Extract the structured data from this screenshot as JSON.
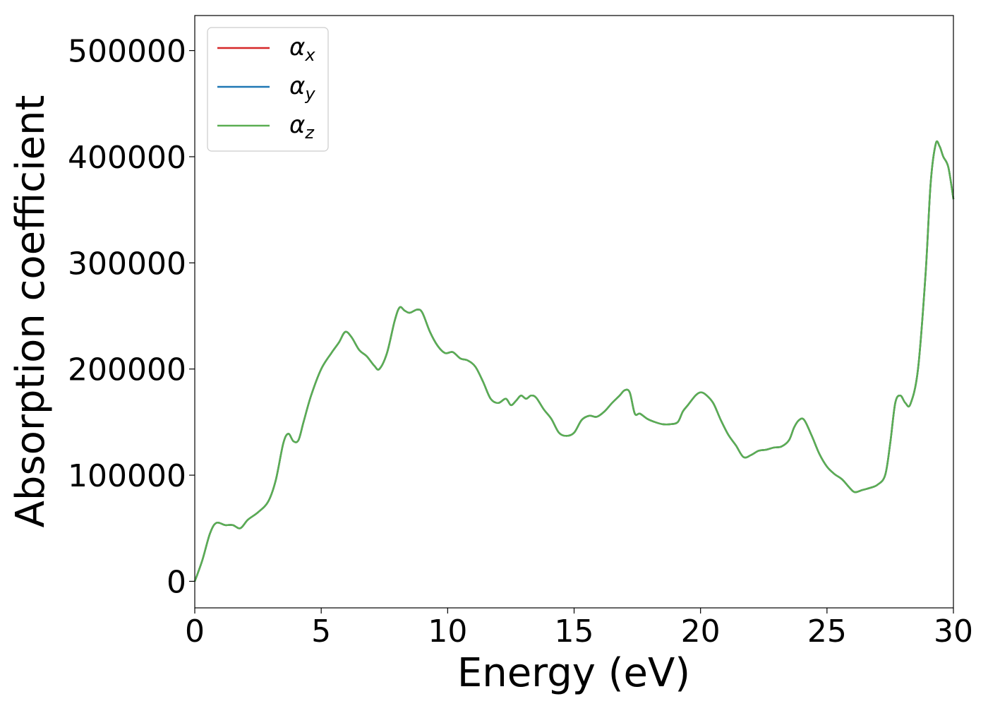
{
  "chart_data": {
    "type": "line",
    "title": "",
    "xlabel": "Energy (eV)",
    "ylabel": "Absorption coefficient",
    "xlim": [
      0,
      30
    ],
    "ylim": [
      -25000,
      533000
    ],
    "grid": false,
    "legend_position": "top-left",
    "x_ticks": [
      0,
      5,
      10,
      15,
      20,
      25,
      30
    ],
    "x_tick_labels": [
      "0",
      "5",
      "10",
      "15",
      "20",
      "25",
      "30"
    ],
    "y_ticks": [
      0,
      100000,
      200000,
      300000,
      400000,
      500000
    ],
    "y_tick_labels": [
      "0",
      "100000",
      "200000",
      "300000",
      "400000",
      "500000"
    ],
    "series": [
      {
        "name": "αx",
        "base": "α",
        "sub": "x",
        "color": "#d62728",
        "x": [
          0,
          0.3,
          0.6,
          0.85,
          1.2,
          1.5,
          1.8,
          2.1,
          2.5,
          2.9,
          3.2,
          3.5,
          3.7,
          3.9,
          4.1,
          4.3,
          4.6,
          5.0,
          5.4,
          5.7,
          5.95,
          6.2,
          6.5,
          6.8,
          7.1,
          7.3,
          7.6,
          7.9,
          8.1,
          8.3,
          8.5,
          8.8,
          9.0,
          9.3,
          9.6,
          9.9,
          10.2,
          10.5,
          10.8,
          11.1,
          11.4,
          11.7,
          12.0,
          12.3,
          12.5,
          12.7,
          12.9,
          13.1,
          13.3,
          13.5,
          13.8,
          14.1,
          14.4,
          14.7,
          15.0,
          15.3,
          15.6,
          15.9,
          16.2,
          16.5,
          16.8,
          17.0,
          17.2,
          17.4,
          17.6,
          17.9,
          18.2,
          18.5,
          18.8,
          19.1,
          19.3,
          19.5,
          19.8,
          20.0,
          20.2,
          20.5,
          20.8,
          21.1,
          21.4,
          21.7,
          22.0,
          22.3,
          22.6,
          22.9,
          23.2,
          23.5,
          23.7,
          23.9,
          24.1,
          24.4,
          24.7,
          25.0,
          25.3,
          25.6,
          25.9,
          26.1,
          26.4,
          26.7,
          27.0,
          27.3,
          27.5,
          27.7,
          27.9,
          28.1,
          28.3,
          28.6,
          28.9,
          29.1,
          29.3,
          29.45,
          29.6,
          29.8,
          30.0
        ],
        "y": [
          0,
          20000,
          45000,
          55000,
          53000,
          53000,
          50000,
          58000,
          65000,
          75000,
          95000,
          130000,
          139000,
          132000,
          133000,
          150000,
          175000,
          200000,
          215000,
          225000,
          235000,
          230000,
          218000,
          212000,
          203000,
          200000,
          215000,
          245000,
          258000,
          255000,
          253000,
          256000,
          253000,
          235000,
          222000,
          215000,
          216000,
          210000,
          208000,
          202000,
          188000,
          172000,
          168000,
          172000,
          166000,
          170000,
          175000,
          172000,
          175000,
          173000,
          162000,
          153000,
          140000,
          137000,
          140000,
          152000,
          156000,
          155000,
          160000,
          168000,
          175000,
          180000,
          178000,
          158000,
          158000,
          153000,
          150000,
          148000,
          148000,
          150000,
          160000,
          166000,
          175000,
          178000,
          176000,
          168000,
          152000,
          138000,
          128000,
          117000,
          119000,
          123000,
          124000,
          126000,
          127000,
          133000,
          145000,
          152000,
          152000,
          137000,
          120000,
          108000,
          101000,
          96000,
          88000,
          84000,
          86000,
          88000,
          91000,
          100000,
          130000,
          168000,
          175000,
          168000,
          167000,
          200000,
          290000,
          375000,
          412000,
          410000,
          400000,
          390000,
          360000
        ]
      },
      {
        "name": "αy",
        "base": "α",
        "sub": "y",
        "color": "#1f77b4",
        "x": [
          0,
          0.3,
          0.6,
          0.85,
          1.2,
          1.5,
          1.8,
          2.1,
          2.5,
          2.9,
          3.2,
          3.5,
          3.7,
          3.9,
          4.1,
          4.3,
          4.6,
          5.0,
          5.4,
          5.7,
          5.95,
          6.2,
          6.5,
          6.8,
          7.1,
          7.3,
          7.6,
          7.9,
          8.1,
          8.3,
          8.5,
          8.8,
          9.0,
          9.3,
          9.6,
          9.9,
          10.2,
          10.5,
          10.8,
          11.1,
          11.4,
          11.7,
          12.0,
          12.3,
          12.5,
          12.7,
          12.9,
          13.1,
          13.3,
          13.5,
          13.8,
          14.1,
          14.4,
          14.7,
          15.0,
          15.3,
          15.6,
          15.9,
          16.2,
          16.5,
          16.8,
          17.0,
          17.2,
          17.4,
          17.6,
          17.9,
          18.2,
          18.5,
          18.8,
          19.1,
          19.3,
          19.5,
          19.8,
          20.0,
          20.2,
          20.5,
          20.8,
          21.1,
          21.4,
          21.7,
          22.0,
          22.3,
          22.6,
          22.9,
          23.2,
          23.5,
          23.7,
          23.9,
          24.1,
          24.4,
          24.7,
          25.0,
          25.3,
          25.6,
          25.9,
          26.1,
          26.4,
          26.7,
          27.0,
          27.3,
          27.5,
          27.7,
          27.9,
          28.1,
          28.3,
          28.6,
          28.9,
          29.1,
          29.3,
          29.45,
          29.6,
          29.8,
          30.0
        ],
        "y": [
          0,
          20000,
          45000,
          55000,
          53000,
          53000,
          50000,
          58000,
          65000,
          75000,
          95000,
          130000,
          139000,
          132000,
          133000,
          150000,
          175000,
          200000,
          215000,
          225000,
          235000,
          230000,
          218000,
          212000,
          203000,
          200000,
          215000,
          245000,
          258000,
          255000,
          253000,
          256000,
          253000,
          235000,
          222000,
          215000,
          216000,
          210000,
          208000,
          202000,
          188000,
          172000,
          168000,
          172000,
          166000,
          170000,
          175000,
          172000,
          175000,
          173000,
          162000,
          153000,
          140000,
          137000,
          140000,
          152000,
          156000,
          155000,
          160000,
          168000,
          175000,
          180000,
          178000,
          158000,
          158000,
          153000,
          150000,
          148000,
          148000,
          150000,
          160000,
          166000,
          175000,
          178000,
          176000,
          168000,
          152000,
          138000,
          128000,
          117000,
          119000,
          123000,
          124000,
          126000,
          127000,
          133000,
          145000,
          152000,
          152000,
          137000,
          120000,
          108000,
          101000,
          96000,
          88000,
          84000,
          86000,
          88000,
          91000,
          100000,
          130000,
          168000,
          175000,
          168000,
          167000,
          200000,
          290000,
          375000,
          412000,
          410000,
          400000,
          390000,
          360000
        ]
      },
      {
        "name": "αz",
        "base": "α",
        "sub": "z",
        "color": "#5aae52",
        "x": [
          0,
          0.3,
          0.6,
          0.85,
          1.2,
          1.5,
          1.8,
          2.1,
          2.5,
          2.9,
          3.2,
          3.5,
          3.7,
          3.9,
          4.1,
          4.3,
          4.6,
          5.0,
          5.4,
          5.7,
          5.95,
          6.2,
          6.5,
          6.8,
          7.1,
          7.3,
          7.6,
          7.9,
          8.1,
          8.3,
          8.5,
          8.8,
          9.0,
          9.3,
          9.6,
          9.9,
          10.2,
          10.5,
          10.8,
          11.1,
          11.4,
          11.7,
          12.0,
          12.3,
          12.5,
          12.7,
          12.9,
          13.1,
          13.3,
          13.5,
          13.8,
          14.1,
          14.4,
          14.7,
          15.0,
          15.3,
          15.6,
          15.9,
          16.2,
          16.5,
          16.8,
          17.0,
          17.2,
          17.4,
          17.6,
          17.9,
          18.2,
          18.5,
          18.8,
          19.1,
          19.3,
          19.5,
          19.8,
          20.0,
          20.2,
          20.5,
          20.8,
          21.1,
          21.4,
          21.7,
          22.0,
          22.3,
          22.6,
          22.9,
          23.2,
          23.5,
          23.7,
          23.9,
          24.1,
          24.4,
          24.7,
          25.0,
          25.3,
          25.6,
          25.9,
          26.1,
          26.4,
          26.7,
          27.0,
          27.3,
          27.5,
          27.7,
          27.9,
          28.1,
          28.3,
          28.6,
          28.9,
          29.1,
          29.3,
          29.45,
          29.6,
          29.8,
          30.0
        ],
        "y": [
          0,
          20000,
          45000,
          55000,
          53000,
          53000,
          50000,
          58000,
          65000,
          75000,
          95000,
          130000,
          139000,
          132000,
          133000,
          150000,
          175000,
          200000,
          215000,
          225000,
          235000,
          230000,
          218000,
          212000,
          203000,
          200000,
          215000,
          245000,
          258000,
          255000,
          253000,
          256000,
          253000,
          235000,
          222000,
          215000,
          216000,
          210000,
          208000,
          202000,
          188000,
          172000,
          168000,
          172000,
          166000,
          170000,
          175000,
          172000,
          175000,
          173000,
          162000,
          153000,
          140000,
          137000,
          140000,
          152000,
          156000,
          155000,
          160000,
          168000,
          175000,
          180000,
          178000,
          158000,
          158000,
          153000,
          150000,
          148000,
          148000,
          150000,
          160000,
          166000,
          175000,
          178000,
          176000,
          168000,
          152000,
          138000,
          128000,
          117000,
          119000,
          123000,
          124000,
          126000,
          127000,
          133000,
          145000,
          152000,
          152000,
          137000,
          120000,
          108000,
          101000,
          96000,
          88000,
          84000,
          86000,
          88000,
          91000,
          100000,
          130000,
          168000,
          175000,
          168000,
          167000,
          200000,
          290000,
          375000,
          412000,
          410000,
          400000,
          390000,
          360000
        ]
      }
    ]
  }
}
